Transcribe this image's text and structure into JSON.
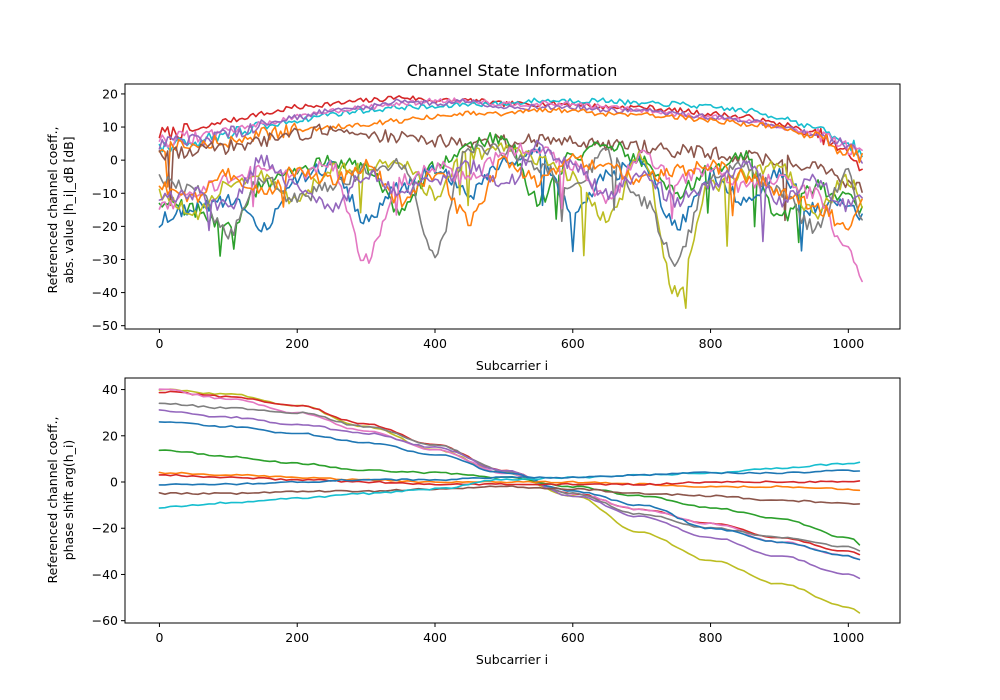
{
  "chart_data": [
    {
      "type": "line",
      "title": "Channel State Information",
      "xlabel": "Subcarrier i",
      "ylabel_line1": "Referenced channel coeff.,",
      "ylabel_line2": "abs. value |h_i|_dB [dB]",
      "xlim": [
        -50,
        1075
      ],
      "ylim": [
        -51,
        23
      ],
      "xticks": [
        0,
        200,
        400,
        600,
        800,
        1000
      ],
      "yticks": [
        -50,
        -40,
        -30,
        -20,
        -10,
        0,
        10,
        20
      ],
      "grid": false,
      "legend": "none",
      "x": [
        0,
        50,
        100,
        150,
        200,
        250,
        300,
        350,
        400,
        450,
        500,
        550,
        600,
        650,
        700,
        750,
        800,
        850,
        900,
        950,
        1000,
        1023
      ],
      "series": [
        {
          "color": "#d62728",
          "values": [
            8,
            9,
            12,
            14,
            16,
            17,
            18,
            19,
            18,
            18,
            17,
            17,
            17,
            16,
            16,
            15,
            14,
            13,
            11,
            8,
            2,
            -4
          ]
        },
        {
          "color": "#17becf",
          "values": [
            4,
            6,
            8,
            10,
            12,
            14,
            15,
            16,
            16,
            17,
            17,
            18,
            18,
            18,
            17,
            17,
            16,
            15,
            13,
            10,
            5,
            2
          ]
        },
        {
          "color": "#e377c2",
          "values": [
            6,
            7,
            9,
            11,
            13,
            15,
            16,
            17,
            18,
            18,
            17,
            17,
            17,
            16,
            15,
            14,
            13,
            12,
            10,
            8,
            4,
            1
          ]
        },
        {
          "color": "#9467bd",
          "values": [
            5,
            6,
            8,
            11,
            13,
            15,
            16,
            18,
            17,
            18,
            16,
            16,
            16,
            15,
            15,
            14,
            13,
            12,
            10,
            8,
            4,
            1
          ]
        },
        {
          "color": "#ff7f0e",
          "values": [
            3,
            5,
            6,
            8,
            9,
            10,
            11,
            12,
            13,
            14,
            14,
            15,
            15,
            14,
            14,
            13,
            12,
            11,
            10,
            7,
            3,
            0
          ]
        },
        {
          "color": "#8c564b",
          "values": [
            1,
            3,
            4,
            6,
            8,
            9,
            8,
            7,
            6,
            5,
            6,
            6,
            6,
            5,
            4,
            3,
            2,
            1,
            0,
            -2,
            -7,
            -9
          ]
        },
        {
          "color": "#2ca02c",
          "values": [
            -12,
            -15,
            -20,
            -8,
            -2,
            0,
            -3,
            -15,
            -2,
            5,
            7,
            -12,
            1,
            5,
            0,
            -10,
            -3,
            1,
            -18,
            -8,
            -12,
            -16
          ]
        },
        {
          "color": "#1f77b4",
          "values": [
            -18,
            -14,
            -12,
            -20,
            -5,
            -2,
            -18,
            -8,
            -3,
            -10,
            -1,
            2,
            -15,
            -5,
            0,
            -20,
            -5,
            -12,
            -4,
            -15,
            -12,
            -18
          ]
        },
        {
          "color": "#bcbd22",
          "values": [
            -10,
            -16,
            -8,
            -5,
            -12,
            -3,
            -2,
            0,
            -10,
            2,
            3,
            0,
            -5,
            -18,
            1,
            -40,
            -8,
            -4,
            -2,
            -16,
            -6,
            -14
          ]
        },
        {
          "color": "#7f7f7f",
          "values": [
            -6,
            -9,
            -22,
            -5,
            -12,
            -8,
            -3,
            -1,
            -28,
            4,
            3,
            -2,
            -8,
            2,
            -12,
            -30,
            -6,
            -2,
            -10,
            -20,
            -4,
            -18
          ]
        },
        {
          "color": "#e377c2",
          "values": [
            -14,
            -10,
            -6,
            -2,
            -4,
            -2,
            -30,
            -6,
            -2,
            -6,
            2,
            4,
            -2,
            -12,
            1,
            -6,
            -3,
            -8,
            -5,
            -10,
            -28,
            -35
          ]
        },
        {
          "color": "#ff7f0e",
          "values": [
            -8,
            -12,
            -4,
            -10,
            -3,
            -6,
            -2,
            -12,
            -4,
            -18,
            -1,
            -6,
            0,
            -2,
            -6,
            -3,
            -2,
            -5,
            -9,
            -14,
            -20,
            -12
          ]
        },
        {
          "color": "#9467bd",
          "values": [
            -12,
            -10,
            -14,
            0,
            -8,
            -15,
            -4,
            -10,
            -6,
            -2,
            -8,
            4,
            -2,
            -10,
            -4,
            -12,
            -8,
            -2,
            -12,
            -6,
            -14,
            -10
          ]
        }
      ]
    },
    {
      "type": "line",
      "title": "",
      "xlabel": "Subcarrier i",
      "ylabel_line1": "Referenced channel coeff.,",
      "ylabel_line2": "phase shift arg(h_i)",
      "xlim": [
        -50,
        1075
      ],
      "ylim": [
        -61,
        45
      ],
      "xticks": [
        0,
        200,
        400,
        600,
        800,
        1000
      ],
      "yticks": [
        -60,
        -40,
        -20,
        0,
        20,
        40
      ],
      "grid": false,
      "legend": "none",
      "x": [
        0,
        100,
        200,
        300,
        400,
        500,
        600,
        700,
        800,
        900,
        1000,
        1023
      ],
      "series": [
        {
          "color": "#bcbd22",
          "values": [
            40,
            38,
            33,
            24,
            14,
            4,
            -6,
            -22,
            -34,
            -44,
            -54,
            -57
          ]
        },
        {
          "color": "#d62728",
          "values": [
            39,
            37,
            33,
            25,
            16,
            5,
            -5,
            -12,
            -18,
            -24,
            -30,
            -32
          ]
        },
        {
          "color": "#e377c2",
          "values": [
            40,
            36,
            30,
            22,
            14,
            4,
            -5,
            -12,
            -18,
            -26,
            -32,
            -34
          ]
        },
        {
          "color": "#7f7f7f",
          "values": [
            34,
            32,
            30,
            24,
            16,
            5,
            -5,
            -14,
            -20,
            -24,
            -28,
            -30
          ]
        },
        {
          "color": "#9467bd",
          "values": [
            31,
            28,
            25,
            21,
            15,
            5,
            -6,
            -15,
            -24,
            -32,
            -40,
            -42
          ]
        },
        {
          "color": "#1f77b4",
          "values": [
            26,
            24,
            21,
            17,
            12,
            4,
            -4,
            -10,
            -20,
            -26,
            -32,
            -34
          ]
        },
        {
          "color": "#2ca02c",
          "values": [
            14,
            11,
            8,
            5,
            4,
            2,
            -2,
            -6,
            -11,
            -16,
            -24,
            -28
          ]
        },
        {
          "color": "#ff7f0e",
          "values": [
            4,
            3,
            2,
            1,
            0,
            0,
            0,
            -1,
            -2,
            -2,
            -3,
            -4
          ]
        },
        {
          "color": "#d62728",
          "values": [
            3,
            2,
            1,
            0,
            -1,
            -1,
            -1,
            -1,
            0,
            0,
            0,
            1
          ]
        },
        {
          "color": "#8c564b",
          "values": [
            -5,
            -5,
            -4,
            -4,
            -3,
            -2,
            -3,
            -5,
            -6,
            -8,
            -9,
            -10
          ]
        },
        {
          "color": "#17becf",
          "values": [
            -11,
            -9,
            -7,
            -5,
            -3,
            1,
            2,
            3,
            4,
            6,
            8,
            9
          ]
        },
        {
          "color": "#1f77b4",
          "values": [
            -1,
            -1,
            0,
            1,
            1,
            2,
            2,
            3,
            4,
            4,
            5,
            5
          ]
        }
      ]
    }
  ]
}
